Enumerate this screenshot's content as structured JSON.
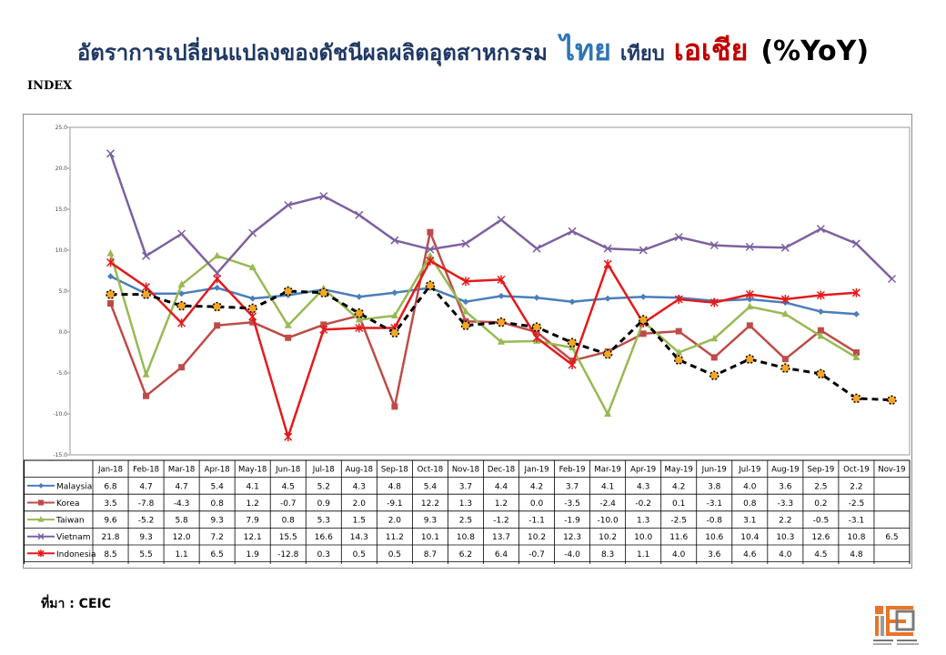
{
  "title": {
    "main": "อัตราการเปลี่ยนแปลงของดัชนีผลผลิตอุตสาหกรรม",
    "thai": "ไทย",
    "vs": "เทียบ",
    "asia": "เอเชีย",
    "unit": "(%YoY)"
  },
  "source": "ที่มา : CEIC",
  "colors": {
    "Malaysia": "#4a7ebb",
    "Korea": "#be4b48",
    "Taiwan": "#98b954",
    "Vietnam": "#7d60a0",
    "Indonesia": "#e31a1c",
    "Thai": "#000000",
    "thai_marker": "#f5a623"
  },
  "chart_data": {
    "type": "line",
    "ylabel": "INDEX",
    "ylim": [
      -15.0,
      25.0
    ],
    "yticks": [
      "25.0",
      "20.0",
      "15.0",
      "10.0",
      "5.0",
      "0.0",
      "-5.0",
      "-10.0",
      "-15.0"
    ],
    "grid": false,
    "legend": "data-table-below",
    "categories": [
      "Jan-18",
      "Feb-18",
      "Mar-18",
      "Apr-18",
      "May-18",
      "Jun-18",
      "Jul-18",
      "Aug-18",
      "Sep-18",
      "Oct-18",
      "Nov-18",
      "Dec-18",
      "Jan-19",
      "Feb-19",
      "Mar-19",
      "Apr-19",
      "May-19",
      "Jun-19",
      "Jul-19",
      "Aug-19",
      "Sep-19",
      "Oct-19",
      "Nov-19"
    ],
    "series": [
      {
        "name": "Malaysia",
        "values": [
          6.8,
          4.7,
          4.7,
          5.4,
          4.1,
          4.5,
          5.2,
          4.3,
          4.8,
          5.4,
          3.7,
          4.4,
          4.2,
          3.7,
          4.1,
          4.3,
          4.2,
          3.8,
          4.0,
          3.6,
          2.5,
          2.2,
          null
        ],
        "labels": [
          "6.8",
          "4.7",
          "4.7",
          "5.4",
          "4.1",
          "4.5",
          "5.2",
          "4.3",
          "4.8",
          "5.4",
          "3.7",
          "4.4",
          "4.2",
          "3.7",
          "4.1",
          "4.3",
          "4.2",
          "3.8",
          "4.0",
          "3.6",
          "2.5",
          "2.2",
          ""
        ]
      },
      {
        "name": "Korea",
        "values": [
          3.5,
          -7.8,
          -4.3,
          0.8,
          1.2,
          -0.7,
          0.9,
          2.0,
          -9.1,
          12.2,
          1.3,
          1.2,
          0.0,
          -3.5,
          -2.4,
          -0.2,
          0.1,
          -3.1,
          0.8,
          -3.3,
          0.2,
          -2.5,
          null
        ],
        "labels": [
          "3.5",
          "-7.8",
          "-4.3",
          "0.8",
          "1.2",
          "-0.7",
          "0.9",
          "2.0",
          "-9.1",
          "12.2",
          "1.3",
          "1.2",
          "0.0",
          "-3.5",
          "-2.4",
          "-0.2",
          "0.1",
          "-3.1",
          "0.8",
          "-3.3",
          "0.2",
          "-2.5",
          ""
        ]
      },
      {
        "name": "Taiwan",
        "values": [
          9.6,
          -5.2,
          5.8,
          9.3,
          7.9,
          0.8,
          5.3,
          1.5,
          2.0,
          9.3,
          2.5,
          -1.2,
          -1.1,
          -1.9,
          -10.0,
          1.3,
          -2.5,
          -0.8,
          3.1,
          2.2,
          -0.5,
          -3.1,
          null
        ],
        "labels": [
          "9.6",
          "-5.2",
          "5.8",
          "9.3",
          "7.9",
          "0.8",
          "5.3",
          "1.5",
          "2.0",
          "9.3",
          "2.5",
          "-1.2",
          "-1.1",
          "-1.9",
          "-10.0",
          "1.3",
          "-2.5",
          "-0.8",
          "3.1",
          "2.2",
          "-0.5",
          "-3.1",
          ""
        ]
      },
      {
        "name": "Vietnam",
        "values": [
          21.8,
          9.3,
          12.0,
          7.2,
          12.1,
          15.5,
          16.6,
          14.3,
          11.2,
          10.1,
          10.8,
          13.7,
          10.2,
          12.3,
          10.2,
          10.0,
          11.6,
          10.6,
          10.4,
          10.3,
          12.6,
          10.8,
          6.5
        ],
        "labels": [
          "21.8",
          "9.3",
          "12.0",
          "7.2",
          "12.1",
          "15.5",
          "16.6",
          "14.3",
          "11.2",
          "10.1",
          "10.8",
          "13.7",
          "10.2",
          "12.3",
          "10.2",
          "10.0",
          "11.6",
          "10.6",
          "10.4",
          "10.3",
          "12.6",
          "10.8",
          "6.5"
        ]
      },
      {
        "name": "Indonesia",
        "values": [
          8.5,
          5.5,
          1.1,
          6.5,
          1.9,
          -12.8,
          0.3,
          0.5,
          0.5,
          8.7,
          6.2,
          6.4,
          -0.7,
          -4.0,
          8.3,
          1.1,
          4.0,
          3.6,
          4.6,
          4.0,
          4.5,
          4.8,
          null
        ],
        "labels": [
          "8.5",
          "5.5",
          "1.1",
          "6.5",
          "1.9",
          "-12.8",
          "0.3",
          "0.5",
          "0.5",
          "8.7",
          "6.2",
          "6.4",
          "-0.7",
          "-4.0",
          "8.3",
          "1.1",
          "4.0",
          "3.6",
          "4.6",
          "4.0",
          "4.5",
          "4.8",
          ""
        ]
      },
      {
        "name": "Thai",
        "values": [
          4.6,
          4.6,
          3.2,
          3.1,
          2.9,
          5,
          4.8,
          2.3,
          -0.1,
          5.7,
          0.8,
          1.2,
          0.6,
          -1.3,
          -2.7,
          1.5,
          -3.4,
          -5.3,
          -3.3,
          -4.4,
          -5.1,
          -8.1,
          -8.3
        ],
        "labels": [
          "4.6",
          "4.6",
          "3.2",
          "3.1",
          "2.9",
          "5",
          "4.8",
          "2.3",
          "-0.1",
          "5.7",
          "0.8",
          "1.2",
          "0.6",
          "-1.3",
          "-2.7",
          "1.5",
          "-3.4",
          "-5.3",
          "-3.3",
          "-4.4",
          "-5.1",
          "-8.1",
          "-8.3"
        ]
      }
    ]
  }
}
